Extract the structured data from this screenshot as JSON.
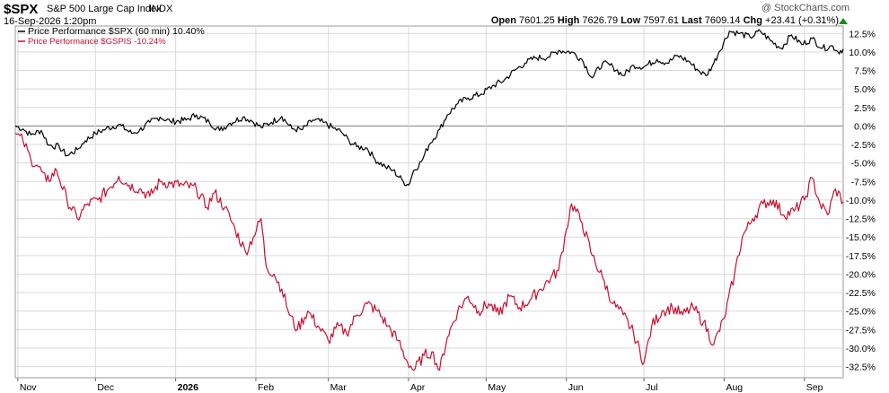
{
  "header": {
    "symbol": "$SPX",
    "full_name": "S&P 500 Large Cap Index",
    "exchange": "INDX",
    "datetime": "16-Sep-2026 1:20pm",
    "credit": "@ StockCharts.com",
    "quote": {
      "open_label": "Open",
      "open": "7601.25",
      "high_label": "High",
      "high": "7626.79",
      "low_label": "Low",
      "low": "7597.61",
      "last_label": "Last",
      "last": "7609.14",
      "chg_label": "Chg",
      "chg": "+23.41 (+0.31%)"
    },
    "up_arrow": "triangle-up-icon"
  },
  "colors": {
    "spx": "#000000",
    "gspis": "#c8102e",
    "grid": "#d9d9d9",
    "zero_line": "#808080",
    "axis": "#999999"
  },
  "chart_data": {
    "type": "line",
    "title": "$SPX S&P 500 Large Cap Index INDX",
    "ylabel": "",
    "xlabel": "",
    "ylim": [
      -34,
      13.5
    ],
    "y_ticks": [
      "12.5%",
      "10.0%",
      "7.5%",
      "5.0%",
      "2.5%",
      "0.0%",
      "-2.5%",
      "-5.0%",
      "-7.5%",
      "-10.0%",
      "-12.5%",
      "-15.0%",
      "-17.5%",
      "-20.0%",
      "-22.5%",
      "-25.0%",
      "-27.5%",
      "-30.0%",
      "-32.5%"
    ],
    "y_tick_values": [
      12.5,
      10,
      7.5,
      5,
      2.5,
      0,
      -2.5,
      -5,
      -7.5,
      -10,
      -12.5,
      -15,
      -17.5,
      -20,
      -22.5,
      -25,
      -27.5,
      -30,
      -32.5
    ],
    "x_ticks": [
      "Nov",
      "Dec",
      "2026",
      "Feb",
      "Mar",
      "Apr",
      "May",
      "Jun",
      "Jul",
      "Aug",
      "Sep"
    ],
    "x_tick_dates": [
      "2025-11-01",
      "2025-12-01",
      "2026-01-01",
      "2026-02-01",
      "2026-03-01",
      "2026-04-01",
      "2026-05-01",
      "2026-06-01",
      "2026-07-01",
      "2026-08-01",
      "2026-09-01"
    ],
    "x_range": [
      "2025-10-31",
      "2026-09-16"
    ],
    "grid": true,
    "legend_position": "top-left",
    "series": [
      {
        "name": "Price Performance $SPX (60 min) 10.40%",
        "color": "#000000",
        "points": [
          [
            "2025-10-31",
            0.0
          ],
          [
            "2025-11-03",
            -0.4
          ],
          [
            "2025-11-06",
            -1.2
          ],
          [
            "2025-11-10",
            -0.6
          ],
          [
            "2025-11-13",
            -2.6
          ],
          [
            "2025-11-17",
            -2.8
          ],
          [
            "2025-11-20",
            -4.0
          ],
          [
            "2025-11-24",
            -3.2
          ],
          [
            "2025-11-27",
            -2.0
          ],
          [
            "2025-12-01",
            -1.0
          ],
          [
            "2025-12-05",
            -0.4
          ],
          [
            "2025-12-10",
            0.2
          ],
          [
            "2025-12-15",
            -1.0
          ],
          [
            "2025-12-18",
            -0.6
          ],
          [
            "2025-12-22",
            0.5
          ],
          [
            "2025-12-26",
            1.2
          ],
          [
            "2025-12-30",
            0.6
          ],
          [
            "2026-01-05",
            0.8
          ],
          [
            "2026-01-09",
            1.5
          ],
          [
            "2026-01-14",
            0.5
          ],
          [
            "2026-01-18",
            -0.6
          ],
          [
            "2026-01-22",
            0.4
          ],
          [
            "2026-01-27",
            1.2
          ],
          [
            "2026-01-30",
            0.8
          ],
          [
            "2026-02-03",
            -0.2
          ],
          [
            "2026-02-07",
            0.5
          ],
          [
            "2026-02-11",
            1.3
          ],
          [
            "2026-02-15",
            -0.4
          ],
          [
            "2026-02-19",
            -0.5
          ],
          [
            "2026-02-23",
            0.8
          ],
          [
            "2026-02-27",
            0.5
          ],
          [
            "2026-03-03",
            -0.3
          ],
          [
            "2026-03-06",
            -0.8
          ],
          [
            "2026-03-09",
            -2.0
          ],
          [
            "2026-03-12",
            -2.8
          ],
          [
            "2026-03-16",
            -3.0
          ],
          [
            "2026-03-19",
            -4.5
          ],
          [
            "2026-03-23",
            -5.5
          ],
          [
            "2026-03-26",
            -6.0
          ],
          [
            "2026-03-30",
            -7.5
          ],
          [
            "2026-04-01",
            -8.0
          ],
          [
            "2026-04-03",
            -6.0
          ],
          [
            "2026-04-06",
            -4.8
          ],
          [
            "2026-04-09",
            -2.5
          ],
          [
            "2026-04-13",
            -0.5
          ],
          [
            "2026-04-16",
            1.5
          ],
          [
            "2026-04-20",
            3.0
          ],
          [
            "2026-04-24",
            3.8
          ],
          [
            "2026-04-29",
            4.3
          ],
          [
            "2026-05-04",
            5.5
          ],
          [
            "2026-05-08",
            6.2
          ],
          [
            "2026-05-12",
            7.5
          ],
          [
            "2026-05-16",
            8.5
          ],
          [
            "2026-05-20",
            9.2
          ],
          [
            "2026-05-25",
            9.3
          ],
          [
            "2026-05-29",
            10.2
          ],
          [
            "2026-06-03",
            10.0
          ],
          [
            "2026-06-07",
            9.0
          ],
          [
            "2026-06-11",
            6.5
          ],
          [
            "2026-06-15",
            8.5
          ],
          [
            "2026-06-19",
            8.0
          ],
          [
            "2026-06-23",
            6.8
          ],
          [
            "2026-06-27",
            8.2
          ],
          [
            "2026-07-01",
            8.0
          ],
          [
            "2026-07-06",
            9.0
          ],
          [
            "2026-07-10",
            8.5
          ],
          [
            "2026-07-14",
            9.5
          ],
          [
            "2026-07-18",
            8.8
          ],
          [
            "2026-07-22",
            7.5
          ],
          [
            "2026-07-25",
            6.8
          ],
          [
            "2026-07-28",
            8.5
          ],
          [
            "2026-07-30",
            10.0
          ],
          [
            "2026-08-03",
            12.8
          ],
          [
            "2026-08-07",
            12.5
          ],
          [
            "2026-08-11",
            12.0
          ],
          [
            "2026-08-15",
            12.8
          ],
          [
            "2026-08-19",
            11.5
          ],
          [
            "2026-08-23",
            10.5
          ],
          [
            "2026-08-27",
            12.3
          ],
          [
            "2026-08-31",
            11.0
          ],
          [
            "2026-09-04",
            11.8
          ],
          [
            "2026-09-08",
            10.5
          ],
          [
            "2026-09-12",
            10.8
          ],
          [
            "2026-09-14",
            10.0
          ],
          [
            "2026-09-16",
            10.4
          ]
        ]
      },
      {
        "name": "Price Performance $GSPIS -10.24%",
        "color": "#c8102e",
        "points": [
          [
            "2025-10-31",
            -1.0
          ],
          [
            "2025-11-03",
            -2.0
          ],
          [
            "2025-11-06",
            -4.5
          ],
          [
            "2025-11-09",
            -5.5
          ],
          [
            "2025-11-12",
            -7.5
          ],
          [
            "2025-11-16",
            -6.0
          ],
          [
            "2025-11-20",
            -10.0
          ],
          [
            "2025-11-24",
            -12.5
          ],
          [
            "2025-11-28",
            -10.5
          ],
          [
            "2025-12-02",
            -10.0
          ],
          [
            "2025-12-06",
            -8.5
          ],
          [
            "2025-12-10",
            -6.8
          ],
          [
            "2025-12-14",
            -8.0
          ],
          [
            "2025-12-18",
            -8.5
          ],
          [
            "2025-12-22",
            -9.5
          ],
          [
            "2025-12-26",
            -7.5
          ],
          [
            "2025-12-30",
            -7.8
          ],
          [
            "2026-01-04",
            -8.0
          ],
          [
            "2026-01-09",
            -8.5
          ],
          [
            "2026-01-13",
            -11.0
          ],
          [
            "2026-01-16",
            -9.0
          ],
          [
            "2026-01-20",
            -11.0
          ],
          [
            "2026-01-24",
            -14.0
          ],
          [
            "2026-01-28",
            -17.0
          ],
          [
            "2026-01-31",
            -15.0
          ],
          [
            "2026-02-03",
            -12.5
          ],
          [
            "2026-02-05",
            -19.0
          ],
          [
            "2026-02-08",
            -20.0
          ],
          [
            "2026-02-11",
            -22.0
          ],
          [
            "2026-02-14",
            -25.5
          ],
          [
            "2026-02-17",
            -27.5
          ],
          [
            "2026-02-21",
            -25.0
          ],
          [
            "2026-02-25",
            -27.0
          ],
          [
            "2026-03-01",
            -29.0
          ],
          [
            "2026-03-05",
            -27.0
          ],
          [
            "2026-03-08",
            -28.0
          ],
          [
            "2026-03-12",
            -25.5
          ],
          [
            "2026-03-16",
            -24.0
          ],
          [
            "2026-03-20",
            -25.0
          ],
          [
            "2026-03-24",
            -27.0
          ],
          [
            "2026-03-28",
            -29.0
          ],
          [
            "2026-03-31",
            -31.5
          ],
          [
            "2026-04-03",
            -33.0
          ],
          [
            "2026-04-07",
            -31.0
          ],
          [
            "2026-04-10",
            -30.5
          ],
          [
            "2026-04-13",
            -33.0
          ],
          [
            "2026-04-16",
            -28.5
          ],
          [
            "2026-04-20",
            -25.0
          ],
          [
            "2026-04-24",
            -23.0
          ],
          [
            "2026-04-28",
            -25.0
          ],
          [
            "2026-05-02",
            -24.0
          ],
          [
            "2026-05-06",
            -25.5
          ],
          [
            "2026-05-10",
            -23.0
          ],
          [
            "2026-05-14",
            -24.5
          ],
          [
            "2026-05-18",
            -23.5
          ],
          [
            "2026-05-22",
            -22.0
          ],
          [
            "2026-05-26",
            -20.5
          ],
          [
            "2026-05-29",
            -19.5
          ],
          [
            "2026-06-01",
            -14.0
          ],
          [
            "2026-06-03",
            -10.5
          ],
          [
            "2026-06-07",
            -13.0
          ],
          [
            "2026-06-11",
            -17.5
          ],
          [
            "2026-06-15",
            -20.5
          ],
          [
            "2026-06-19",
            -24.0
          ],
          [
            "2026-06-23",
            -25.5
          ],
          [
            "2026-06-27",
            -28.0
          ],
          [
            "2026-07-01",
            -32.0
          ],
          [
            "2026-07-04",
            -27.0
          ],
          [
            "2026-07-08",
            -25.0
          ],
          [
            "2026-07-12",
            -24.5
          ],
          [
            "2026-07-16",
            -25.5
          ],
          [
            "2026-07-20",
            -24.5
          ],
          [
            "2026-07-24",
            -26.5
          ],
          [
            "2026-07-28",
            -29.5
          ],
          [
            "2026-08-01",
            -26.0
          ],
          [
            "2026-08-05",
            -20.0
          ],
          [
            "2026-08-08",
            -15.0
          ],
          [
            "2026-08-12",
            -12.5
          ],
          [
            "2026-08-16",
            -10.5
          ],
          [
            "2026-08-20",
            -10.0
          ],
          [
            "2026-08-24",
            -12.0
          ],
          [
            "2026-08-28",
            -11.5
          ],
          [
            "2026-09-01",
            -10.0
          ],
          [
            "2026-09-04",
            -7.0
          ],
          [
            "2026-09-07",
            -10.5
          ],
          [
            "2026-09-10",
            -12.0
          ],
          [
            "2026-09-13",
            -8.5
          ],
          [
            "2026-09-16",
            -10.24
          ]
        ]
      }
    ]
  }
}
